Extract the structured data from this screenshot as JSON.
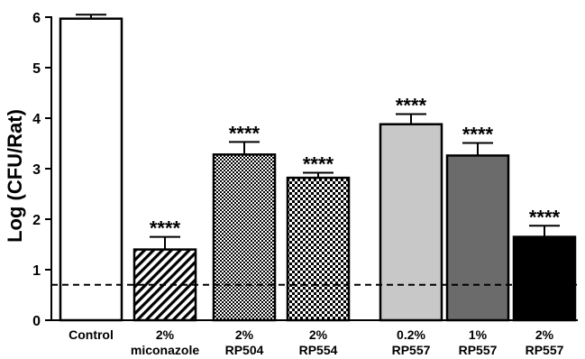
{
  "chart_data": {
    "type": "bar",
    "title": "",
    "xlabel": "",
    "ylabel": "Log (CFU/Rat)",
    "ylim": [
      0,
      6
    ],
    "yticks": [
      "0",
      "1",
      "2",
      "3",
      "4",
      "5",
      "6"
    ],
    "grid": false,
    "legend": "none",
    "categories": [
      {
        "line1": "Control",
        "line2": ""
      },
      {
        "line1": "2%",
        "line2": "miconazole"
      },
      {
        "line1": "2%",
        "line2": "RP504"
      },
      {
        "line1": "2%",
        "line2": "RP554"
      },
      {
        "line1": "0.2%",
        "line2": "RP557"
      },
      {
        "line1": "1%",
        "line2": "RP557"
      },
      {
        "line1": "2%",
        "line2": "RP557"
      }
    ],
    "values": [
      5.97,
      1.4,
      3.28,
      2.82,
      3.88,
      3.26,
      1.65
    ],
    "errors": [
      0.08,
      0.25,
      0.25,
      0.1,
      0.2,
      0.25,
      0.22
    ],
    "significance": [
      "",
      "****",
      "****",
      "****",
      "****",
      "****",
      "****"
    ],
    "fills": [
      "white",
      "diagonal-hatch",
      "fine-check",
      "coarse-check",
      "light-gray",
      "dark-gray",
      "black"
    ],
    "colors": {
      "light_gray": "#c8c8c8",
      "dark_gray": "#6b6b6b",
      "black": "#000000"
    },
    "reference_line": {
      "value": 0.7,
      "style": "dashed"
    }
  }
}
